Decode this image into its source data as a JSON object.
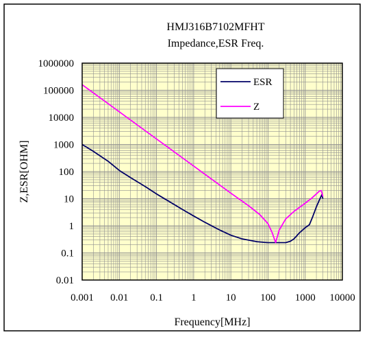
{
  "chart_data": {
    "type": "line",
    "title": "HMJ316B7102MFHT",
    "subtitle": "Impedance,ESR Freq.",
    "xlabel": "Frequency[MHz]",
    "ylabel": "Z,ESR[OHM]",
    "x_scale": "log",
    "y_scale": "log",
    "xlim": [
      0.001,
      10000
    ],
    "ylim": [
      0.01,
      1000000
    ],
    "x_ticks": [
      "0.001",
      "0.01",
      "0.1",
      "1",
      "10",
      "100",
      "1000",
      "10000"
    ],
    "y_ticks": [
      "0.01",
      "0.1",
      "1",
      "10",
      "100",
      "1000",
      "10000",
      "100000",
      "1000000"
    ],
    "grid": true,
    "legend_position": "top-right",
    "background_color": "#ffffcc",
    "series": [
      {
        "name": "ESR",
        "color": "#000066",
        "x": [
          0.001,
          0.002,
          0.005,
          0.01,
          0.02,
          0.05,
          0.1,
          0.2,
          0.5,
          1,
          2,
          5,
          10,
          20,
          50,
          80,
          100,
          150,
          200,
          300,
          400,
          500,
          700,
          1000,
          1300,
          1600,
          2000,
          2500,
          2800,
          3000
        ],
        "y": [
          1000,
          560,
          240,
          110,
          60,
          28,
          15,
          8.5,
          4,
          2.3,
          1.35,
          0.7,
          0.45,
          0.33,
          0.26,
          0.245,
          0.24,
          0.24,
          0.24,
          0.24,
          0.27,
          0.33,
          0.55,
          0.85,
          1.1,
          2.2,
          5,
          10,
          14,
          10
        ]
      },
      {
        "name": "Z",
        "color": "#ff00ff",
        "x": [
          0.001,
          0.01,
          0.1,
          1,
          10,
          30,
          60,
          100,
          130,
          160,
          200,
          300,
          500,
          1000,
          1500,
          2000,
          2400,
          2700,
          3000
        ],
        "y": [
          160000,
          16000,
          1600,
          160,
          16,
          5.5,
          2.6,
          1.2,
          0.55,
          0.24,
          0.7,
          1.8,
          3.4,
          6.8,
          10.5,
          15,
          19,
          20,
          12
        ]
      }
    ]
  }
}
